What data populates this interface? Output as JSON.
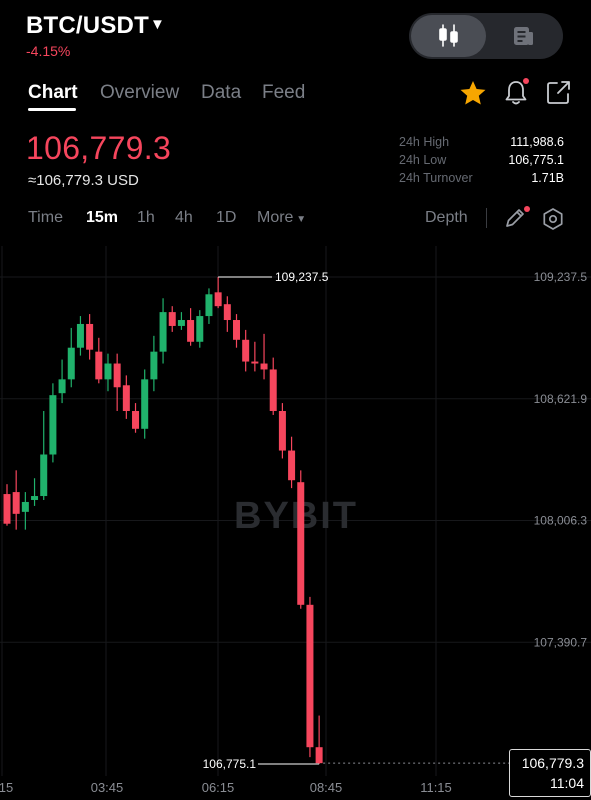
{
  "header": {
    "pair": "BTC/USDT",
    "change": "-4.15%"
  },
  "tabs": [
    {
      "label": "Chart",
      "active": true
    },
    {
      "label": "Overview",
      "active": false
    },
    {
      "label": "Data",
      "active": false
    },
    {
      "label": "Feed",
      "active": false
    }
  ],
  "ticker": {
    "last_price": "106,779.3",
    "usd_equiv": "≈106,779.3 USD",
    "stats": [
      {
        "label": "24h High",
        "value": "111,988.6"
      },
      {
        "label": "24h Low",
        "value": "106,775.1"
      },
      {
        "label": "24h Turnover",
        "value": "1.71B"
      }
    ]
  },
  "timeframes": [
    {
      "label": "Time",
      "active": false
    },
    {
      "label": "15m",
      "active": true
    },
    {
      "label": "1h",
      "active": false
    },
    {
      "label": "4h",
      "active": false
    },
    {
      "label": "1D",
      "active": false
    },
    {
      "label": "More",
      "active": false
    }
  ],
  "depth_label": "Depth",
  "colors": {
    "up": "#20b26c",
    "down": "#f6465d",
    "star": "#f7a600"
  },
  "icons": {
    "toggle_left": "candlestick-icon",
    "toggle_right": "document-icon",
    "favorite": "star-icon",
    "alert": "bell-icon",
    "share": "share-icon",
    "draw": "pencil-icon",
    "settings": "gear-icon"
  },
  "watermark": "BYBIT",
  "chart_data": {
    "type": "candlestick",
    "y_ticks": [
      "109,237.5",
      "108,621.9",
      "108,006.3",
      "107,390.7"
    ],
    "y_tick_values": [
      109237.5,
      108621.9,
      108006.3,
      107390.7
    ],
    "x_ticks": [
      "15",
      "03:45",
      "06:15",
      "08:45",
      "11:15"
    ],
    "high_marker": "109,237.5",
    "low_marker": "106,775.1",
    "current_price": "106,779.3",
    "current_time": "11:04",
    "candles": [
      {
        "o": 108140,
        "h": 108190,
        "l": 107980,
        "c": 107990
      },
      {
        "o": 108150,
        "h": 108260,
        "l": 107960,
        "c": 108040
      },
      {
        "o": 108050,
        "h": 108150,
        "l": 107960,
        "c": 108100
      },
      {
        "o": 108110,
        "h": 108220,
        "l": 108080,
        "c": 108130
      },
      {
        "o": 108130,
        "h": 108560,
        "l": 108110,
        "c": 108340
      },
      {
        "o": 108340,
        "h": 108700,
        "l": 108300,
        "c": 108640
      },
      {
        "o": 108650,
        "h": 108820,
        "l": 108600,
        "c": 108720
      },
      {
        "o": 108720,
        "h": 108980,
        "l": 108680,
        "c": 108880
      },
      {
        "o": 108880,
        "h": 109040,
        "l": 108840,
        "c": 109000
      },
      {
        "o": 109000,
        "h": 109050,
        "l": 108820,
        "c": 108870
      },
      {
        "o": 108860,
        "h": 108930,
        "l": 108700,
        "c": 108720
      },
      {
        "o": 108720,
        "h": 108850,
        "l": 108660,
        "c": 108800
      },
      {
        "o": 108800,
        "h": 108850,
        "l": 108560,
        "c": 108680
      },
      {
        "o": 108690,
        "h": 108740,
        "l": 108520,
        "c": 108560
      },
      {
        "o": 108560,
        "h": 108600,
        "l": 108450,
        "c": 108470
      },
      {
        "o": 108470,
        "h": 108770,
        "l": 108420,
        "c": 108720
      },
      {
        "o": 108720,
        "h": 108940,
        "l": 108660,
        "c": 108860
      },
      {
        "o": 108860,
        "h": 109130,
        "l": 108800,
        "c": 109060
      },
      {
        "o": 109060,
        "h": 109090,
        "l": 108960,
        "c": 108990
      },
      {
        "o": 108990,
        "h": 109060,
        "l": 108970,
        "c": 109020
      },
      {
        "o": 109020,
        "h": 109080,
        "l": 108890,
        "c": 108910
      },
      {
        "o": 108910,
        "h": 109070,
        "l": 108880,
        "c": 109040
      },
      {
        "o": 109040,
        "h": 109180,
        "l": 109000,
        "c": 109150
      },
      {
        "o": 109160,
        "h": 109237.5,
        "l": 109080,
        "c": 109090
      },
      {
        "o": 109100,
        "h": 109140,
        "l": 108960,
        "c": 109020
      },
      {
        "o": 109020,
        "h": 109050,
        "l": 108880,
        "c": 108920
      },
      {
        "o": 108920,
        "h": 108970,
        "l": 108760,
        "c": 108810
      },
      {
        "o": 108810,
        "h": 108910,
        "l": 108760,
        "c": 108800
      },
      {
        "o": 108800,
        "h": 108950,
        "l": 108720,
        "c": 108770
      },
      {
        "o": 108770,
        "h": 108830,
        "l": 108540,
        "c": 108560
      },
      {
        "o": 108560,
        "h": 108600,
        "l": 108320,
        "c": 108360
      },
      {
        "o": 108360,
        "h": 108430,
        "l": 108170,
        "c": 108210
      },
      {
        "o": 108200,
        "h": 108260,
        "l": 107560,
        "c": 107580
      },
      {
        "o": 107580,
        "h": 107620,
        "l": 106810,
        "c": 106860
      },
      {
        "o": 106860,
        "h": 107020,
        "l": 106775.1,
        "c": 106779.3
      }
    ]
  }
}
